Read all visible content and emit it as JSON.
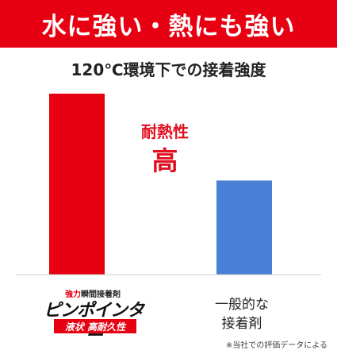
{
  "banner": {
    "title": "水に強い・熱にも強い"
  },
  "chart_data": {
    "type": "bar",
    "title": "120℃環境下での接着強度",
    "categories": [
      "ピンポインター 液状 高耐久性",
      "一般的な接着剤"
    ],
    "values": [
      100,
      52
    ],
    "ylim": [
      0,
      100
    ],
    "grid": false,
    "colors": [
      "#e60012",
      "#4a7fd6"
    ],
    "annotation": {
      "line1": "耐熱性",
      "line2": "高"
    }
  },
  "labels": {
    "product_line1_accent": "強力",
    "product_line1_rest": "瞬間接着剤",
    "product_name": "ピンポインター",
    "product_tag": "液状 高耐久性",
    "generic_line1": "一般的な",
    "generic_line2": "接着剤"
  },
  "footnote": "※当社での評価データによる"
}
